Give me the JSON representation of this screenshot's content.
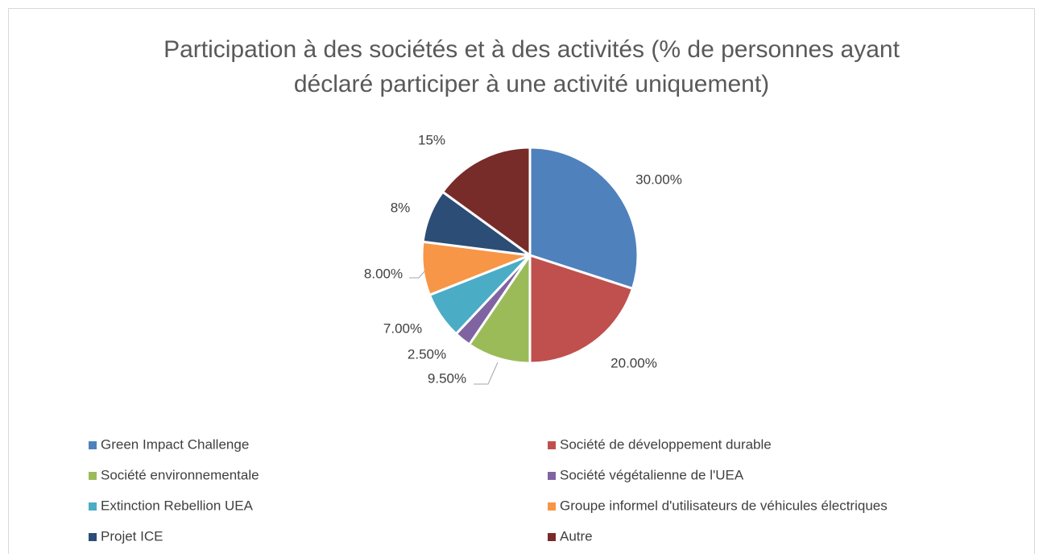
{
  "chart_data": {
    "type": "pie",
    "title": [
      "Participation à des sociétés et à des activités (% de personnes ayant",
      "déclaré participer à une activité uniquement)"
    ],
    "categories": [
      "Green Impact Challenge",
      "Société de développement durable",
      "Société environnementale",
      "Société végétalienne de l'UEA",
      "Extinction Rebellion UEA",
      "Groupe informel d'utilisateurs de véhicules électriques",
      "Projet ICE",
      "Autre"
    ],
    "values": [
      30,
      20,
      9.5,
      2.5,
      7,
      8,
      8,
      15
    ],
    "value_labels": [
      "30.00%",
      "20.00%",
      "9.50%",
      "2.50%",
      "7.00%",
      "8.00%",
      "8%",
      "15%"
    ],
    "colors": [
      "#4f81bd",
      "#c0504d",
      "#9bbb59",
      "#8064a2",
      "#4bacc6",
      "#f79646",
      "#2c4d75",
      "#772c2a"
    ],
    "legend": "bottom"
  }
}
